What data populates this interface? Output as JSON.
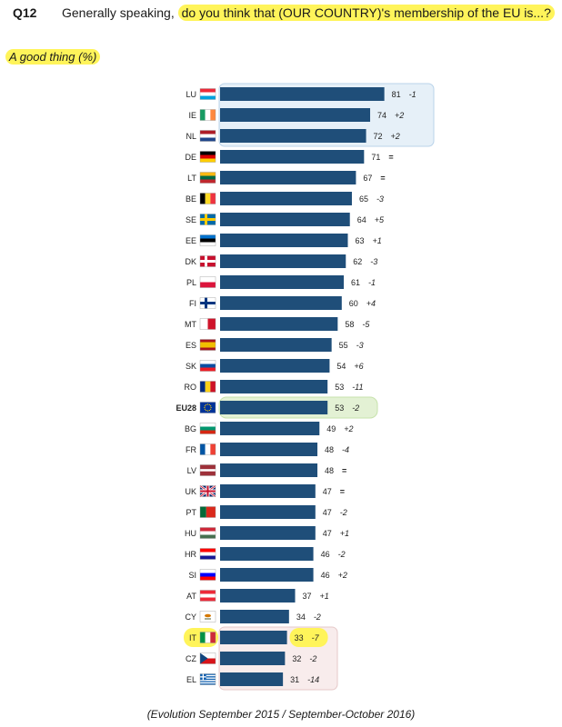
{
  "question": {
    "number": "Q12",
    "prefix": "Generally speaking, ",
    "highlighted": "do you think that (OUR COUNTRY)'s membership of the EU is...?"
  },
  "subtitle": "A good thing (%)",
  "footer": "(Evolution September 2015 / September-October 2016)",
  "colors": {
    "bar": "#1f4e79",
    "highlight": "#fff45a",
    "top_group_bg": "#e6f0f8",
    "avg_bg": "#e3f1d4",
    "bottom_group_bg": "#f8ecec"
  },
  "chart_data": {
    "type": "bar",
    "orientation": "horizontal",
    "title": "A good thing (%)",
    "xlim": [
      0,
      100
    ],
    "grid": false,
    "categories": [
      "LU",
      "IE",
      "NL",
      "DE",
      "LT",
      "BE",
      "SE",
      "EE",
      "DK",
      "PL",
      "FI",
      "MT",
      "ES",
      "SK",
      "RO",
      "EU28",
      "BG",
      "FR",
      "LV",
      "UK",
      "PT",
      "HU",
      "HR",
      "SI",
      "AT",
      "CY",
      "IT",
      "CZ",
      "EL"
    ],
    "values": [
      81,
      74,
      72,
      71,
      67,
      65,
      64,
      63,
      62,
      61,
      60,
      58,
      55,
      54,
      53,
      53,
      49,
      48,
      48,
      47,
      47,
      47,
      46,
      46,
      37,
      34,
      33,
      32,
      31
    ],
    "changes": [
      "-1",
      "+2",
      "+2",
      "=",
      "=",
      "-3",
      "+5",
      "+1",
      "-3",
      "-1",
      "+4",
      "-5",
      "-3",
      "+6",
      "-11",
      "-2",
      "+2",
      "-4",
      "=",
      "=",
      "-2",
      "+1",
      "-2",
      "+2",
      "+1",
      "-2",
      "-7",
      "-2",
      "-14"
    ]
  }
}
